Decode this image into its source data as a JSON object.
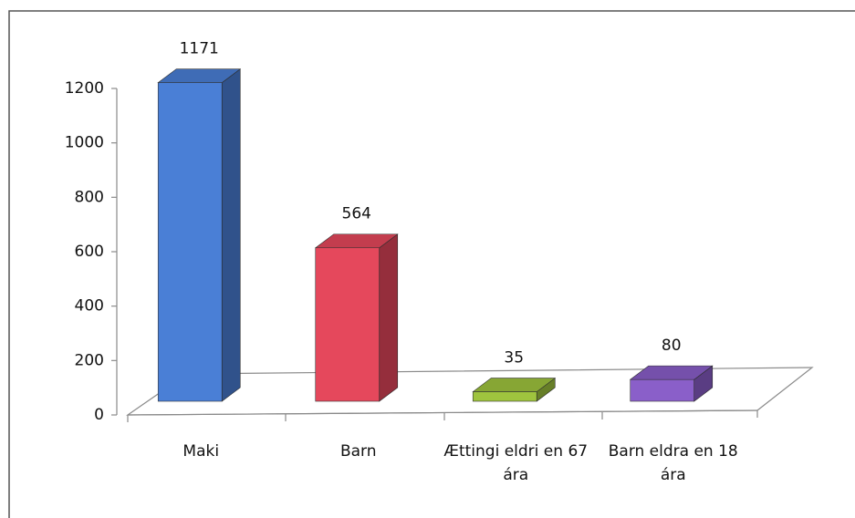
{
  "chart_data": {
    "type": "bar",
    "categories": [
      "Maki",
      "Barn",
      "Ættingi eldri en 67 ára",
      "Barn eldra en 18 ára"
    ],
    "values": [
      1171,
      564,
      35,
      80
    ],
    "colors": [
      "#4a7fd6",
      "#e5485c",
      "#9fc43e",
      "#8a5fc9"
    ],
    "ylim": [
      0,
      1200
    ],
    "yticks": [
      0,
      200,
      400,
      600,
      800,
      1000,
      1200
    ],
    "grid": false
  }
}
